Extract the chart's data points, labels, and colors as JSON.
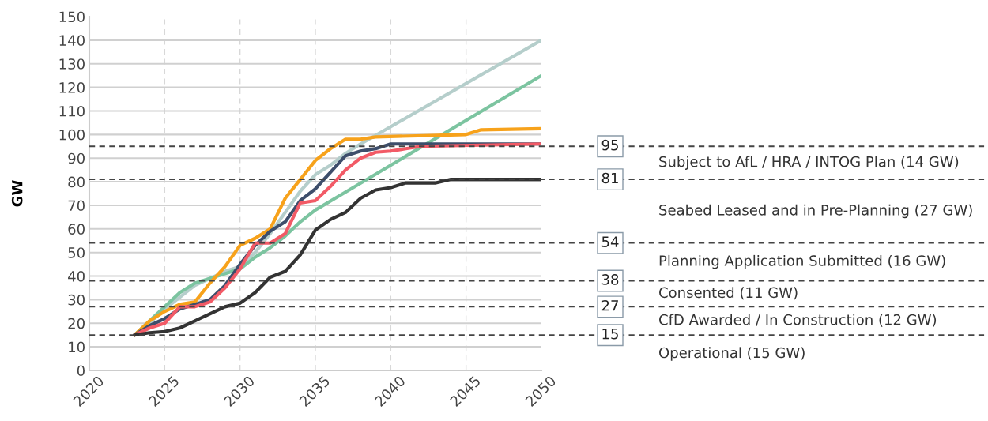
{
  "chart_data": {
    "type": "line",
    "ylabel": "GW",
    "xlim": [
      2020,
      2050
    ],
    "xticks": [
      2020,
      2025,
      2030,
      2035,
      2040,
      2045,
      2050
    ],
    "ylim": [
      0,
      150
    ],
    "yticks": [
      0,
      10,
      20,
      30,
      40,
      50,
      60,
      70,
      80,
      90,
      100,
      110,
      120,
      130,
      140,
      150
    ],
    "grid": true,
    "marker": "none",
    "line_style": "solid",
    "series": [
      {
        "color": "#b5cecb",
        "x": [
          2023,
          2024,
          2025,
          2026,
          2027,
          2028,
          2029,
          2030,
          2031,
          2032,
          2033,
          2034,
          2035,
          2036,
          2037,
          2038,
          2050
        ],
        "values": [
          15,
          20,
          26,
          31,
          36,
          39,
          42,
          44,
          50,
          58,
          67,
          76,
          83,
          87,
          92,
          96,
          140
        ]
      },
      {
        "color": "#7cc4a0",
        "x": [
          2023,
          2024,
          2025,
          2026,
          2027,
          2028,
          2029,
          2030,
          2031,
          2032,
          2033,
          2034,
          2035,
          2050
        ],
        "values": [
          15,
          21,
          27,
          33,
          37,
          39,
          41,
          43,
          48,
          52,
          57,
          63,
          68,
          125
        ]
      },
      {
        "color": "#f7a21b",
        "x": [
          2023,
          2024,
          2025,
          2026,
          2027,
          2028,
          2029,
          2030,
          2031,
          2032,
          2033,
          2034,
          2035,
          2036,
          2037,
          2038,
          2039,
          2045,
          2046,
          2050
        ],
        "values": [
          15,
          21,
          25,
          28,
          29,
          37,
          44,
          53,
          56,
          60,
          73,
          81,
          89,
          94,
          98,
          98,
          99,
          100,
          102,
          102.5
        ]
      },
      {
        "color": "#3d4e6b",
        "x": [
          2023,
          2024,
          2025,
          2026,
          2027,
          2028,
          2029,
          2030,
          2031,
          2032,
          2033,
          2034,
          2035,
          2036,
          2037,
          2038,
          2039,
          2040,
          2050
        ],
        "values": [
          15,
          19,
          22,
          26,
          28,
          30,
          36,
          45,
          53,
          59,
          63,
          72,
          77,
          84,
          91,
          93,
          94,
          96,
          96
        ]
      },
      {
        "color": "#f25a66",
        "x": [
          2023,
          2024,
          2025,
          2026,
          2027,
          2028,
          2029,
          2030,
          2031,
          2032,
          2033,
          2034,
          2035,
          2036,
          2037,
          2038,
          2039,
          2040,
          2041,
          2042,
          2050
        ],
        "values": [
          15,
          18,
          20,
          27,
          27,
          29,
          35,
          43,
          54,
          54,
          58,
          71,
          72,
          78,
          85,
          90,
          92.5,
          93,
          94,
          95,
          96
        ]
      },
      {
        "color": "#333333",
        "x": [
          2023,
          2024,
          2025,
          2026,
          2027,
          2028,
          2029,
          2030,
          2031,
          2032,
          2033,
          2034,
          2035,
          2036,
          2037,
          2038,
          2039,
          2040,
          2041,
          2043,
          2044,
          2050
        ],
        "values": [
          15,
          16,
          16.5,
          18,
          21,
          24,
          27,
          28.5,
          33,
          39.5,
          42,
          49,
          59.5,
          64,
          67,
          73,
          76.5,
          77.5,
          79.5,
          79.5,
          81,
          81
        ]
      }
    ],
    "ref_lines": [
      {
        "axis": "y",
        "value": 95,
        "label": "95",
        "line_style": "dashed",
        "color": "#444444"
      },
      {
        "axis": "y",
        "value": 81,
        "label": "81",
        "line_style": "dashed",
        "color": "#444444"
      },
      {
        "axis": "y",
        "value": 54,
        "label": "54",
        "line_style": "dashed",
        "color": "#444444"
      },
      {
        "axis": "y",
        "value": 38,
        "label": "38",
        "line_style": "dashed",
        "color": "#444444"
      },
      {
        "axis": "y",
        "value": 27,
        "label": "27",
        "line_style": "dashed",
        "color": "#444444"
      },
      {
        "axis": "y",
        "value": 15,
        "label": "15",
        "line_style": "dashed",
        "color": "#444444"
      }
    ],
    "annotations": [
      "Subject to AfL / HRA / INTOG Plan (14 GW)",
      "Seabed Leased and in Pre-Planning (27 GW)",
      "Planning Application Submitted (16 GW)",
      "Consented (11 GW)",
      "CfD Awarded / In Construction (12 GW)",
      "Operational (15 GW)"
    ]
  }
}
